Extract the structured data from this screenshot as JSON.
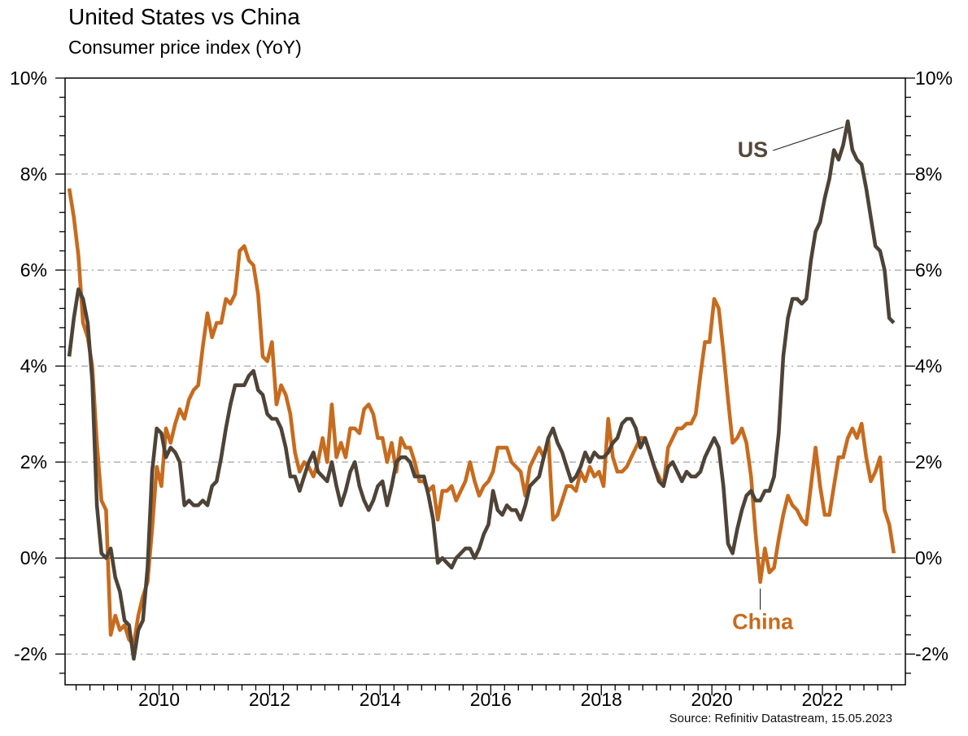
{
  "title": "United States vs China",
  "subtitle": "Consumer price index (YoY)",
  "source": "Source: Refinitiv Datastream, 15.05.2023",
  "annotations": {
    "us": "US",
    "china": "China"
  },
  "colors": {
    "us_line": "#4e4337",
    "china_line": "#c76b1e",
    "grid": "#8c8c8c",
    "zero_line": "#1a1a1a",
    "axis": "#000000",
    "callout": "#333333"
  },
  "chart_data": {
    "type": "line",
    "title": "United States vs China",
    "subtitle": "Consumer price index (YoY)",
    "xlabel": "",
    "ylabel": "",
    "frequency": "monthly",
    "start": {
      "year": 2008,
      "month": 5
    },
    "end": {
      "year": 2023,
      "month": 4
    },
    "xlim": [
      2008.3,
      2023.5
    ],
    "ylim": [
      -2.64,
      10
    ],
    "y_tick_labels": [
      "10%",
      "8%",
      "6%",
      "4%",
      "2%",
      "0%",
      "-2%"
    ],
    "y_major_values": [
      10,
      8,
      6,
      4,
      2,
      0,
      -2
    ],
    "y_minor_step": 0.4,
    "y_gridlines_dashed": [
      8,
      6,
      4,
      2,
      -2
    ],
    "y_zero_line": 0,
    "x_tick_labels": [
      "2010",
      "2012",
      "2014",
      "2016",
      "2018",
      "2020",
      "2022"
    ],
    "x_minor_step_years": 0.25,
    "grid": "horizontal-dashed",
    "legend": "inline-annotations",
    "series": [
      {
        "name": "US",
        "color": "#4e4337",
        "values": [
          4.2,
          5.0,
          5.6,
          5.4,
          4.9,
          3.7,
          1.1,
          0.1,
          0.0,
          0.2,
          -0.4,
          -0.7,
          -1.3,
          -1.4,
          -2.1,
          -1.5,
          -1.3,
          -0.2,
          1.8,
          2.7,
          2.6,
          2.1,
          2.3,
          2.2,
          2.0,
          1.1,
          1.2,
          1.1,
          1.1,
          1.2,
          1.1,
          1.5,
          1.6,
          2.1,
          2.7,
          3.2,
          3.6,
          3.6,
          3.6,
          3.8,
          3.9,
          3.5,
          3.4,
          3.0,
          2.9,
          2.9,
          2.7,
          2.3,
          1.7,
          1.7,
          1.4,
          1.7,
          2.0,
          2.2,
          1.8,
          1.7,
          1.6,
          2.0,
          1.5,
          1.1,
          1.4,
          1.8,
          2.0,
          1.5,
          1.2,
          1.0,
          1.2,
          1.5,
          1.6,
          1.1,
          1.5,
          2.0,
          2.1,
          2.1,
          2.0,
          1.7,
          1.7,
          1.7,
          1.3,
          0.8,
          -0.1,
          0.0,
          -0.1,
          -0.2,
          0.0,
          0.1,
          0.2,
          0.2,
          0.0,
          0.2,
          0.5,
          0.7,
          1.4,
          1.0,
          0.9,
          1.1,
          1.0,
          1.0,
          0.8,
          1.1,
          1.5,
          1.6,
          1.7,
          2.1,
          2.5,
          2.7,
          2.4,
          2.2,
          1.9,
          1.6,
          1.7,
          1.9,
          2.2,
          2.0,
          2.2,
          2.1,
          2.1,
          2.2,
          2.4,
          2.5,
          2.8,
          2.9,
          2.9,
          2.7,
          2.3,
          2.5,
          2.2,
          1.9,
          1.6,
          1.5,
          1.9,
          2.0,
          1.8,
          1.6,
          1.8,
          1.7,
          1.7,
          1.8,
          2.1,
          2.3,
          2.5,
          2.3,
          1.5,
          0.3,
          0.1,
          0.6,
          1.0,
          1.3,
          1.4,
          1.2,
          1.2,
          1.4,
          1.4,
          1.7,
          2.6,
          4.2,
          5.0,
          5.4,
          5.4,
          5.3,
          5.4,
          6.2,
          6.8,
          7.0,
          7.5,
          7.9,
          8.5,
          8.3,
          8.6,
          9.1,
          8.5,
          8.3,
          8.2,
          7.7,
          7.1,
          6.5,
          6.4,
          6.0,
          5.0,
          4.9
        ]
      },
      {
        "name": "China",
        "color": "#c76b1e",
        "values": [
          7.7,
          7.1,
          6.3,
          4.9,
          4.6,
          4.0,
          2.4,
          1.2,
          1.0,
          -1.6,
          -1.2,
          -1.5,
          -1.4,
          -1.7,
          -1.8,
          -1.2,
          -0.8,
          -0.5,
          0.6,
          1.9,
          1.5,
          2.7,
          2.4,
          2.8,
          3.1,
          2.9,
          3.3,
          3.5,
          3.6,
          4.4,
          5.1,
          4.6,
          4.9,
          4.9,
          5.4,
          5.3,
          5.5,
          6.4,
          6.5,
          6.2,
          6.1,
          5.5,
          4.2,
          4.1,
          4.5,
          3.2,
          3.6,
          3.4,
          3.0,
          2.2,
          1.8,
          2.0,
          1.9,
          1.7,
          2.0,
          2.5,
          2.0,
          3.2,
          2.1,
          2.4,
          2.1,
          2.7,
          2.7,
          2.6,
          3.1,
          3.2,
          3.0,
          2.5,
          2.5,
          2.0,
          2.4,
          1.8,
          2.5,
          2.3,
          2.3,
          2.0,
          1.6,
          1.6,
          1.4,
          1.5,
          0.8,
          1.4,
          1.4,
          1.5,
          1.2,
          1.4,
          1.6,
          2.0,
          1.6,
          1.3,
          1.5,
          1.6,
          1.8,
          2.3,
          2.3,
          2.3,
          2.0,
          1.9,
          1.8,
          1.3,
          1.9,
          2.1,
          2.3,
          2.1,
          2.5,
          0.8,
          0.9,
          1.2,
          1.5,
          1.5,
          1.4,
          1.8,
          1.6,
          1.9,
          1.7,
          1.8,
          1.5,
          2.9,
          2.1,
          1.8,
          1.8,
          1.9,
          2.1,
          2.3,
          2.5,
          2.5,
          2.2,
          1.9,
          1.7,
          1.5,
          2.3,
          2.5,
          2.7,
          2.7,
          2.8,
          2.8,
          3.0,
          3.8,
          4.5,
          4.5,
          5.4,
          5.2,
          4.3,
          3.3,
          2.4,
          2.5,
          2.7,
          2.4,
          1.7,
          0.5,
          -0.5,
          0.2,
          -0.3,
          -0.2,
          0.4,
          0.9,
          1.3,
          1.1,
          1.0,
          0.8,
          0.7,
          1.5,
          2.3,
          1.5,
          0.9,
          0.9,
          1.5,
          2.1,
          2.1,
          2.5,
          2.7,
          2.5,
          2.8,
          2.1,
          1.6,
          1.8,
          2.1,
          1.0,
          0.7,
          0.1
        ]
      }
    ]
  }
}
